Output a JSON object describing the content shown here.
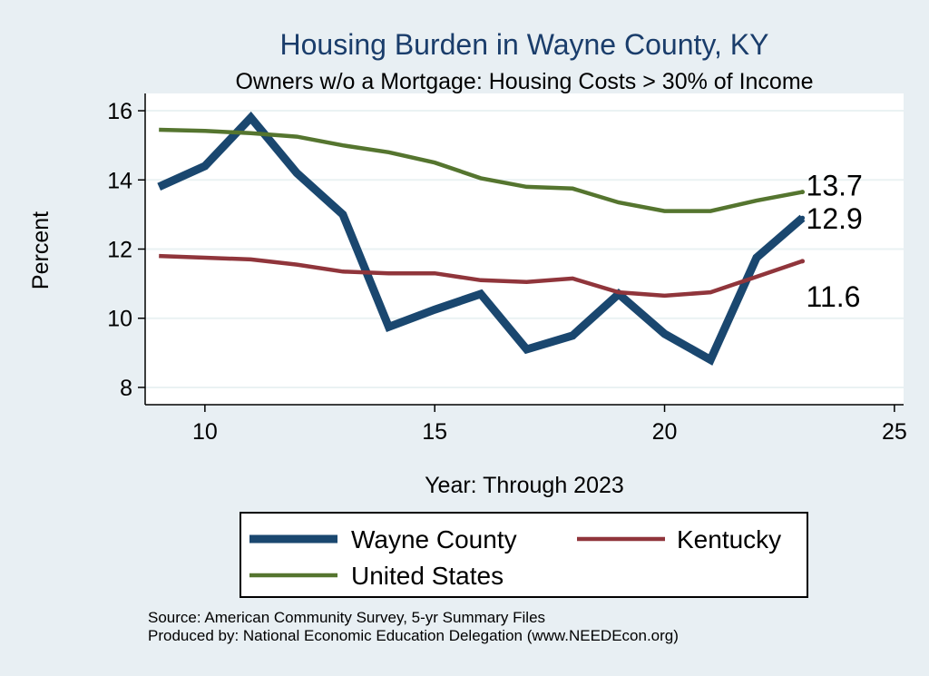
{
  "chart_data": {
    "type": "line",
    "title": "Housing Burden in Wayne County, KY",
    "subtitle": "Owners w/o a Mortgage: Housing Costs > 30% of Income",
    "xlabel": "Year: Through 2023",
    "ylabel": "Percent",
    "xlim": [
      8.7,
      25.2
    ],
    "ylim": [
      7.5,
      16.5
    ],
    "xticks": [
      10,
      15,
      20,
      25
    ],
    "yticks": [
      8,
      10,
      12,
      14,
      16
    ],
    "grid": true,
    "legend_position": "bottom",
    "x": [
      9,
      10,
      11,
      12,
      13,
      14,
      15,
      16,
      17,
      18,
      19,
      20,
      21,
      22,
      23
    ],
    "series": [
      {
        "name": "Wayne County",
        "color": "#1a476f",
        "values": [
          13.8,
          14.4,
          15.8,
          14.2,
          13.0,
          9.75,
          10.25,
          10.7,
          9.1,
          9.5,
          10.7,
          9.55,
          8.8,
          11.75,
          12.9
        ],
        "end_label": "12.9"
      },
      {
        "name": "Kentucky",
        "color": "#90353b",
        "values": [
          11.8,
          11.75,
          11.7,
          11.55,
          11.35,
          11.3,
          11.3,
          11.1,
          11.05,
          11.15,
          10.75,
          10.65,
          10.75,
          11.2,
          11.65
        ],
        "end_label": "11.6"
      },
      {
        "name": "United States",
        "color": "#55752f",
        "values": [
          15.45,
          15.42,
          15.35,
          15.25,
          15.0,
          14.8,
          14.5,
          14.05,
          13.8,
          13.75,
          13.35,
          13.1,
          13.1,
          13.4,
          13.65
        ],
        "end_label": "13.7"
      }
    ]
  },
  "source_lines": [
    "Source: American Community Survey, 5-yr Summary Files",
    "Produced by: National Economic Education Delegation (www.NEEDEcon.org)"
  ]
}
